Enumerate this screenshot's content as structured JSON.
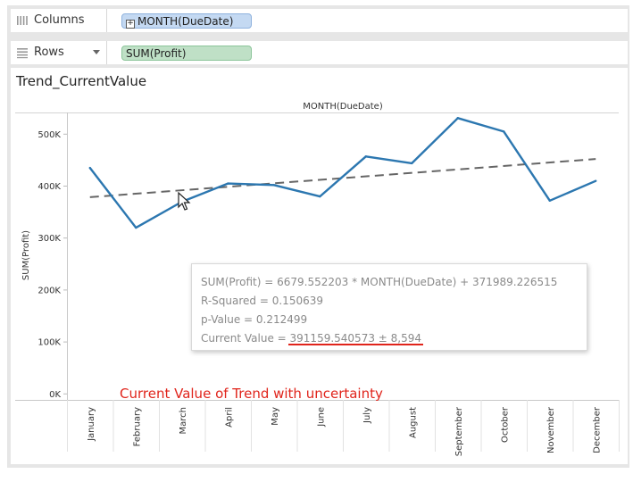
{
  "shelves": {
    "columns": {
      "label": "Columns",
      "pill": "MONTH(DueDate)",
      "icon": "columns-shelf-icon"
    },
    "rows": {
      "label": "Rows",
      "pill": "SUM(Profit)",
      "icon": "rows-shelf-icon"
    }
  },
  "sheet": {
    "title": "Trend_CurrentValue"
  },
  "chart_data": {
    "type": "line",
    "title": "",
    "header": "MONTH(DueDate)",
    "xlabel": "",
    "ylabel": "SUM(Profit)",
    "categories": [
      "January",
      "February",
      "March",
      "April",
      "May",
      "June",
      "July",
      "August",
      "September",
      "October",
      "November",
      "December"
    ],
    "series": [
      {
        "values": [
          435000,
          320000,
          370000,
          405000,
          402000,
          380000,
          457000,
          444000,
          531000,
          505000,
          372000,
          410000
        ],
        "color": "#2c77b0"
      }
    ],
    "trend_line": {
      "slope": 6679.552203,
      "intercept": 371989.226515,
      "color": "#666666",
      "style": "dashed"
    },
    "yticks": [
      0,
      100000,
      200000,
      300000,
      400000,
      500000
    ],
    "ytick_labels": [
      "0K",
      "100K",
      "200K",
      "300K",
      "400K",
      "500K"
    ],
    "ylim": [
      0,
      560000
    ],
    "grid": false
  },
  "tooltip": {
    "equation": "SUM(Profit) = 6679.552203 * MONTH(DueDate) + 371989.226515",
    "r_squared": "R-Squared = 0.150639",
    "p_value": "p-Value = 0.212499",
    "current_value_label": "Current Value = ",
    "current_value": "391159.540573 ± 8,594",
    "underline_color": "#e0241b"
  },
  "annotation": {
    "text": "Current Value of Trend with uncertainty",
    "color": "#e0241b"
  }
}
